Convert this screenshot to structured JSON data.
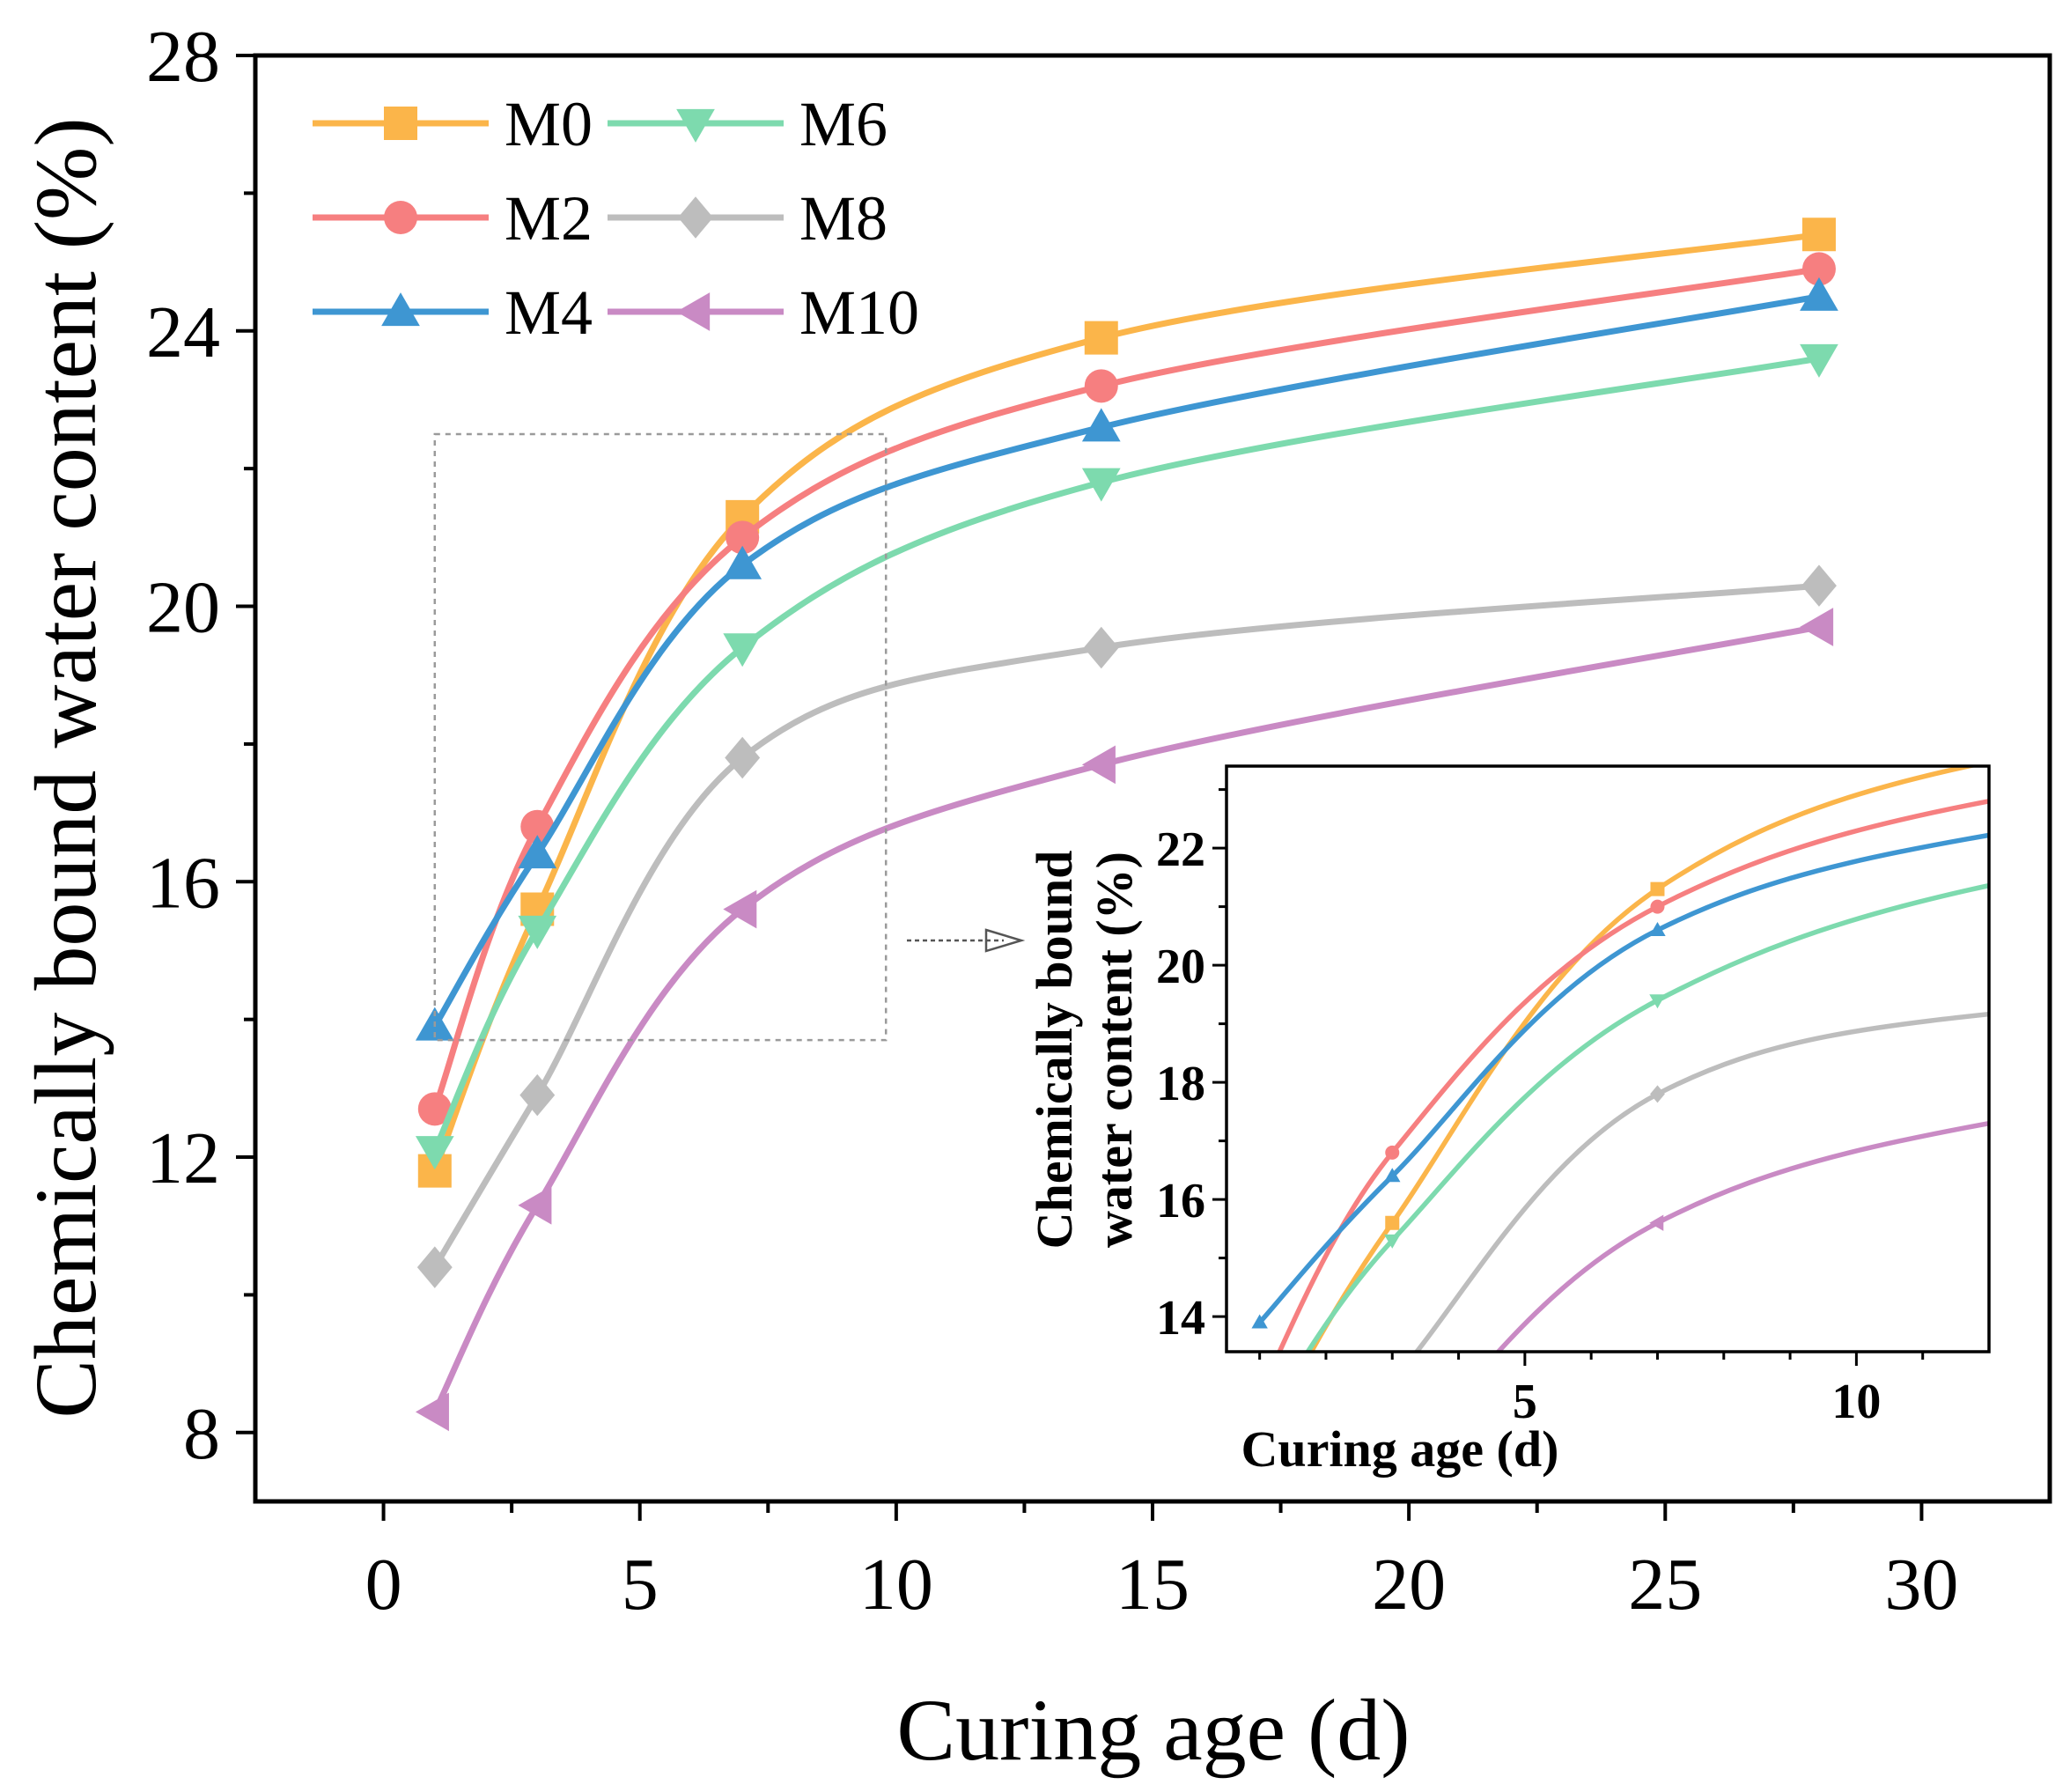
{
  "chart_data": {
    "type": "line",
    "xlabel": "Curing age (d)",
    "ylabel": "Chemically bound water content (%)",
    "xlim": [
      -2.5,
      32.5
    ],
    "ylim": [
      7,
      28
    ],
    "xticks": [
      0,
      5,
      10,
      15,
      20,
      25,
      30
    ],
    "yticks": [
      8,
      12,
      16,
      20,
      24,
      28
    ],
    "x": [
      1,
      3,
      7,
      14,
      28
    ],
    "series": [
      {
        "name": "M0",
        "color": "#FBB54A",
        "marker": "square",
        "values": [
          11.8,
          15.6,
          21.3,
          23.9,
          25.4
        ]
      },
      {
        "name": "M2",
        "color": "#F67F80",
        "marker": "circle",
        "values": [
          12.7,
          16.8,
          21.0,
          23.2,
          24.9
        ]
      },
      {
        "name": "M4",
        "color": "#3E96D2",
        "marker": "triangle-up",
        "values": [
          13.9,
          16.4,
          20.6,
          22.6,
          24.5
        ]
      },
      {
        "name": "M6",
        "color": "#7DDAAE",
        "marker": "triangle-down",
        "values": [
          12.1,
          15.3,
          19.4,
          21.8,
          23.6
        ]
      },
      {
        "name": "M8",
        "color": "#BDBDBD",
        "marker": "diamond",
        "values": [
          10.4,
          12.9,
          17.8,
          19.4,
          20.3
        ]
      },
      {
        "name": "M10",
        "color": "#C98AC4",
        "marker": "triangle-left",
        "values": [
          8.3,
          11.3,
          15.6,
          17.7,
          19.7
        ]
      }
    ],
    "legend_position": "top-left",
    "inset": {
      "xlabel": "Curing age (d)",
      "ylabel_line1": "Chemically bound",
      "ylabel_line2": "water content (%)",
      "xlim": [
        0.5,
        12.0
      ],
      "ylim": [
        13.4,
        23.4
      ],
      "xticks": [
        5,
        10
      ],
      "yticks": [
        14,
        16,
        18,
        20,
        22
      ]
    }
  }
}
